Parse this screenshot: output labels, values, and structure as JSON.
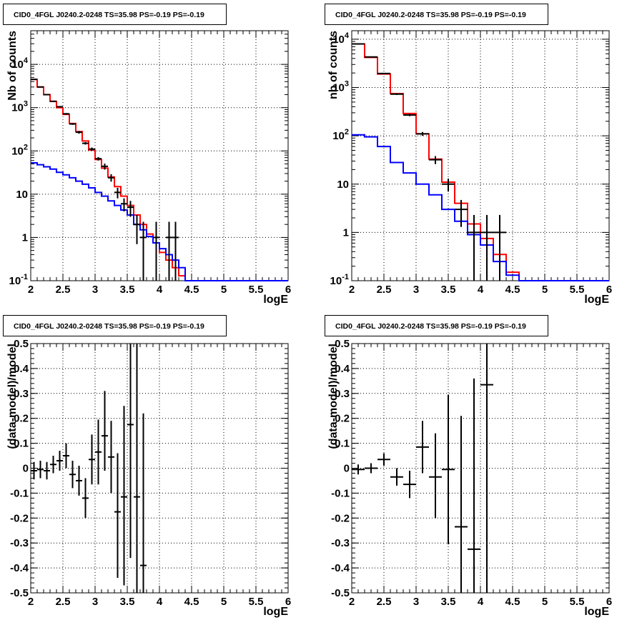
{
  "canvas": {
    "background": "#ffffff"
  },
  "colors": {
    "data": "#000000",
    "model_total": "#ff0000",
    "model_background": "#0000ff"
  },
  "chart_data": [
    {
      "type": "histogram",
      "title": "CID0_4FGL J0240.2-0248 TS=35.98 PS=-0.19 PS=-0.19",
      "xlabel": "logE",
      "ylabel": "Nb of counts",
      "xlim": [
        2,
        6
      ],
      "ylim": [
        0.1,
        60000
      ],
      "log_y": true,
      "grid": true,
      "x_ticks": [
        "2",
        "2.5",
        "3",
        "3.5",
        "4",
        "4.5",
        "5",
        "5.5",
        "6"
      ],
      "y_ticks": [
        {
          "mant": "10",
          "exp": "-1",
          "value": 0.1
        },
        {
          "mant": "1",
          "exp": "",
          "value": 1
        },
        {
          "mant": "10",
          "exp": "",
          "value": 10
        },
        {
          "mant": "10",
          "exp": "2",
          "value": 100
        },
        {
          "mant": "10",
          "exp": "3",
          "value": 1000
        },
        {
          "mant": "10",
          "exp": "4",
          "value": 10000
        }
      ],
      "bin_edges": [
        2.0,
        2.1,
        2.2,
        2.3,
        2.4,
        2.5,
        2.6,
        2.7,
        2.8,
        2.9,
        3.0,
        3.1,
        3.2,
        3.3,
        3.4,
        3.5,
        3.6,
        3.7,
        3.8,
        3.9,
        4.0,
        4.1,
        4.2,
        4.3,
        4.4,
        4.5,
        4.6,
        4.7,
        4.8,
        4.9,
        5.0,
        5.1,
        5.2,
        5.3,
        5.4,
        5.5,
        5.6,
        5.7,
        5.8,
        5.9,
        6.0
      ],
      "series": [
        {
          "name": "",
          "style": "hist",
          "color": "#ff0000",
          "values": [
            4500,
            3000,
            2000,
            1400,
            1000,
            700,
            430,
            280,
            170,
            105,
            63,
            40,
            25,
            15,
            9,
            5.5,
            3.3,
            2.0,
            1.2,
            0.75,
            0.45,
            0.3,
            0.2,
            0.13,
            0.1,
            0.1,
            0.1,
            0.1,
            0.1,
            0.1,
            0.1,
            0.1,
            0.1,
            0.1,
            0.1,
            0.1,
            0.1,
            0.1,
            0.1,
            0.1
          ]
        },
        {
          "name": "",
          "style": "hist",
          "color": "#0000ff",
          "values": [
            53,
            48,
            43,
            38,
            32,
            28,
            24,
            20,
            17,
            14,
            11,
            9,
            7,
            5.5,
            4.3,
            3.3,
            2.0,
            1.5,
            1.05,
            0.75,
            0.55,
            0.4,
            0.3,
            0.2,
            0.1,
            0.1,
            0.1,
            0.1,
            0.1,
            0.1,
            0.1,
            0.1,
            0.1,
            0.1,
            0.1,
            0.1,
            0.1,
            0.1,
            0.1,
            0.1
          ]
        }
      ],
      "points": {
        "color": "#000000",
        "x": [
          2.05,
          2.15,
          2.25,
          2.35,
          2.45,
          2.55,
          2.65,
          2.75,
          2.85,
          2.95,
          3.05,
          3.15,
          3.25,
          3.35,
          3.45,
          3.55,
          3.65,
          3.75,
          3.95,
          4.15,
          4.25
        ],
        "y": [
          4500,
          3000,
          2000,
          1400,
          1050,
          720,
          420,
          270,
          150,
          110,
          66,
          44,
          24,
          11,
          6,
          5,
          2,
          1,
          1,
          1,
          1
        ],
        "ylow": [
          4430,
          2940,
          1940,
          1360,
          1020,
          690,
          400,
          250,
          140,
          100,
          60,
          37,
          19.5,
          8,
          4,
          3,
          0.7,
          0.05,
          0.05,
          0.05,
          0.05
        ],
        "yhigh": [
          4570,
          3060,
          2060,
          1440,
          1080,
          750,
          440,
          290,
          160,
          120,
          72,
          51,
          29,
          14,
          8,
          7,
          3.3,
          2.3,
          2.3,
          2.3,
          2.3
        ]
      }
    },
    {
      "type": "histogram",
      "title": "CID0_4FGL J0240.2-0248 TS=35.98 PS=-0.19 PS=-0.19",
      "xlabel": "logE",
      "ylabel": "nb of counts",
      "xlim": [
        2,
        6
      ],
      "ylim": [
        0.1,
        15000
      ],
      "log_y": true,
      "grid": true,
      "x_ticks": [
        "2",
        "2.5",
        "3",
        "3.5",
        "4",
        "4.5",
        "5",
        "5.5",
        "6"
      ],
      "y_ticks": [
        {
          "mant": "10",
          "exp": "-1",
          "value": 0.1
        },
        {
          "mant": "1",
          "exp": "",
          "value": 1
        },
        {
          "mant": "10",
          "exp": "",
          "value": 10
        },
        {
          "mant": "10",
          "exp": "2",
          "value": 100
        },
        {
          "mant": "10",
          "exp": "3",
          "value": 1000
        },
        {
          "mant": "10",
          "exp": "4",
          "value": 10000
        }
      ],
      "bin_edges": [
        2.0,
        2.2,
        2.4,
        2.6,
        2.8,
        3.0,
        3.2,
        3.4,
        3.6,
        3.8,
        4.0,
        4.2,
        4.4,
        4.6,
        4.8,
        5.0,
        5.2,
        5.4,
        5.6,
        5.8,
        6.0
      ],
      "series": [
        {
          "name": "",
          "style": "hist",
          "color": "#ff0000",
          "values": [
            8000,
            4200,
            1900,
            750,
            290,
            110,
            33,
            11,
            4,
            1.5,
            0.75,
            0.35,
            0.15,
            0.1,
            0.1,
            0.1,
            0.1,
            0.1,
            0.1,
            0.1
          ]
        },
        {
          "name": "",
          "style": "hist",
          "color": "#0000ff",
          "values": [
            105,
            95,
            60,
            28,
            17,
            10,
            6,
            3,
            1.7,
            0.9,
            0.55,
            0.25,
            0.13,
            0.1,
            0.1,
            0.1,
            0.1,
            0.1,
            0.1,
            0.1
          ]
        }
      ],
      "points": {
        "color": "#000000",
        "x": [
          2.1,
          2.3,
          2.5,
          2.7,
          2.9,
          3.1,
          3.3,
          3.5,
          3.7,
          3.9,
          4.1,
          4.3
        ],
        "y": [
          8000,
          4300,
          1950,
          730,
          270,
          110,
          32,
          10,
          3,
          1,
          1,
          1
        ],
        "ylow": [
          7900,
          4240,
          1900,
          700,
          255,
          100,
          26,
          7,
          1.3,
          0.05,
          0.05,
          0.05
        ],
        "yhigh": [
          8100,
          4360,
          2000,
          760,
          285,
          120,
          38,
          13,
          4.7,
          2.3,
          2.3,
          2.3
        ]
      }
    },
    {
      "type": "scatter",
      "title": "CID0_4FGL J0240.2-0248 TS=35.98 PS=-0.19 PS=-0.19",
      "xlabel": "logE",
      "ylabel": "(data-model)/model",
      "xlim": [
        2,
        6
      ],
      "ylim": [
        -0.5,
        0.5
      ],
      "grid": true,
      "x_ticks": [
        "2",
        "2.5",
        "3",
        "3.5",
        "4",
        "4.5",
        "5",
        "5.5",
        "6"
      ],
      "y_ticks": [
        "-0.5",
        "-0.4",
        "-0.3",
        "-0.2",
        "-0.1",
        "0",
        "0.1",
        "0.2",
        "0.3",
        "0.4",
        "0.5"
      ],
      "points": {
        "color": "#000000",
        "x": [
          2.05,
          2.15,
          2.25,
          2.35,
          2.45,
          2.55,
          2.65,
          2.75,
          2.85,
          2.95,
          3.05,
          3.15,
          3.25,
          3.35,
          3.45,
          3.55,
          3.65,
          3.75
        ],
        "y": [
          -0.01,
          -0.005,
          -0.01,
          0.015,
          0.03,
          0.05,
          -0.025,
          -0.05,
          -0.12,
          0.035,
          0.065,
          0.13,
          0.045,
          -0.175,
          -0.115,
          0.175,
          -0.115,
          -0.39
        ],
        "xerr": 0.05,
        "ylow": [
          -0.045,
          -0.04,
          -0.045,
          -0.02,
          -0.01,
          0.0,
          -0.08,
          -0.11,
          -0.2,
          -0.065,
          -0.065,
          -0.01,
          -0.1,
          -0.44,
          -0.47,
          -0.36,
          -0.5,
          -0.5
        ],
        "yhigh": [
          0.025,
          0.03,
          0.025,
          0.05,
          0.07,
          0.1,
          0.03,
          0.01,
          -0.04,
          0.135,
          0.195,
          0.31,
          0.19,
          0.06,
          0.25,
          0.5,
          0.5,
          0.22
        ]
      }
    },
    {
      "type": "scatter",
      "title": "CID0_4FGL J0240.2-0248 TS=35.98 PS=-0.19 PS=-0.19",
      "xlabel": "logE",
      "ylabel": "(data-model)/model",
      "xlim": [
        2,
        6
      ],
      "ylim": [
        -0.5,
        0.5
      ],
      "grid": true,
      "x_ticks": [
        "2",
        "2.5",
        "3",
        "3.5",
        "4",
        "4.5",
        "5",
        "5.5",
        "6"
      ],
      "y_ticks": [
        "-0.5",
        "-0.4",
        "-0.3",
        "-0.2",
        "-0.1",
        "0",
        "0.1",
        "0.2",
        "0.3",
        "0.4",
        "0.5"
      ],
      "points": {
        "color": "#000000",
        "x": [
          2.1,
          2.3,
          2.5,
          2.7,
          2.9,
          3.1,
          3.3,
          3.5,
          3.7,
          3.9,
          4.1
        ],
        "y": [
          -0.005,
          0.0,
          0.035,
          -0.035,
          -0.065,
          0.085,
          -0.035,
          -0.005,
          -0.235,
          -0.325,
          0.335
        ],
        "xerr": 0.1,
        "ylow": [
          -0.025,
          -0.02,
          0.01,
          -0.07,
          -0.12,
          -0.02,
          -0.2,
          -0.305,
          -0.5,
          -0.5,
          -0.5
        ],
        "yhigh": [
          0.015,
          0.02,
          0.06,
          0.0,
          -0.01,
          0.19,
          0.14,
          0.295,
          0.21,
          0.36,
          0.5
        ]
      }
    }
  ]
}
